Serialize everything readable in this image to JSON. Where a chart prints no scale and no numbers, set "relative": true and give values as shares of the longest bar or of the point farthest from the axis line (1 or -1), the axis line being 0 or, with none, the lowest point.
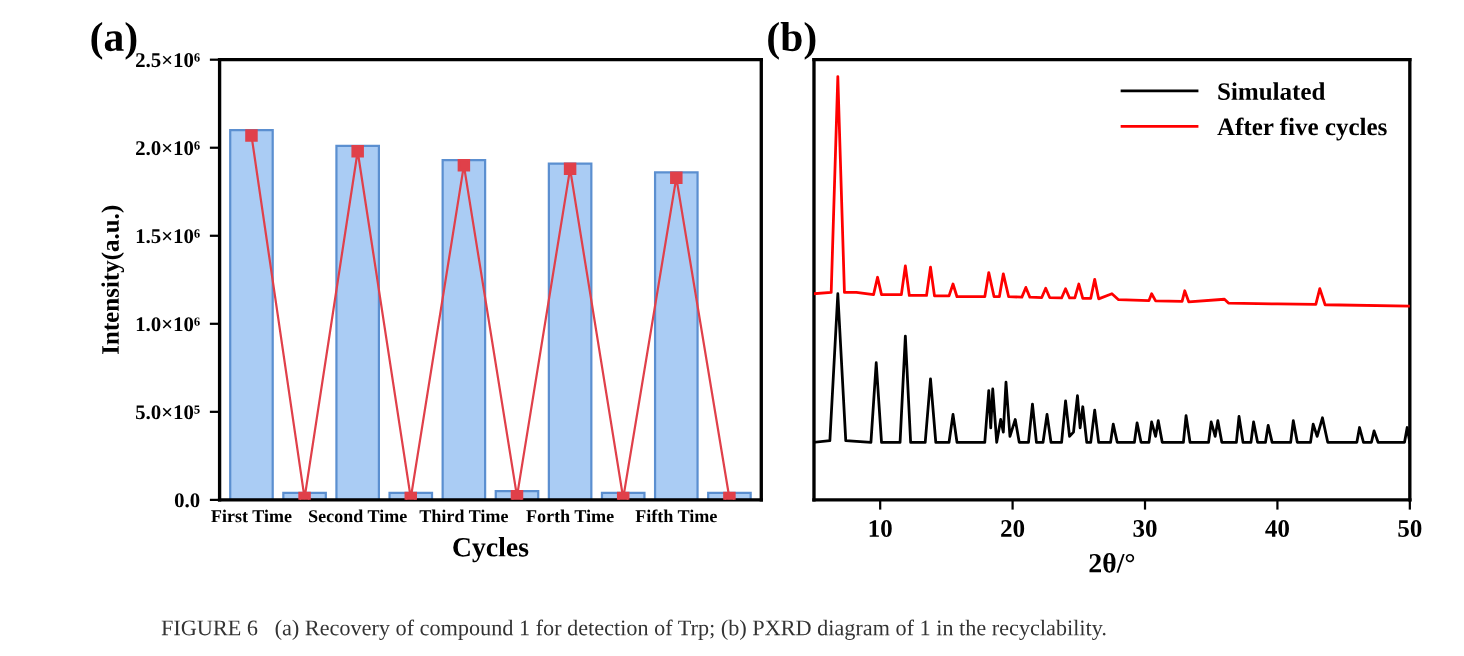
{
  "chart_data": [
    {
      "type": "bar",
      "title": "(a)",
      "xlabel": "Cycles",
      "ylabel": "Intensity(a.u.)",
      "categories": [
        "First Time",
        null,
        "Second Time",
        null,
        "Third Time",
        null,
        "Forth Time",
        null,
        "Fifth Time",
        null
      ],
      "series": [
        {
          "type": "bar",
          "color": "#aaccf4",
          "values": [
            2100000,
            40000,
            2010000,
            40000,
            1930000,
            50000,
            1910000,
            40000,
            1860000,
            40000
          ]
        },
        {
          "type": "line",
          "color": "#e0404a",
          "marker": "square",
          "values": [
            2070000,
            10000,
            1980000,
            10000,
            1900000,
            20000,
            1880000,
            10000,
            1830000,
            10000
          ]
        }
      ],
      "ylim": [
        0,
        2500000
      ],
      "yticks": [
        {
          "value": 0,
          "label": "0.0"
        },
        {
          "value": 500000,
          "label": "5.0×10⁵"
        },
        {
          "value": 1000000,
          "label": "1.0×10⁶"
        },
        {
          "value": 1500000,
          "label": "1.5×10⁶"
        },
        {
          "value": 2000000,
          "label": "2.0×10⁶"
        },
        {
          "value": 2500000,
          "label": "2.5×10⁶"
        }
      ],
      "annotations": [
        "FIGURE 6   (a) Recovery of compound 1 for detection of Trp; (b) PXRD diagram of 1 in the recyclability."
      ]
    },
    {
      "type": "line",
      "title": "(b)",
      "xlabel": "2θ/°",
      "relative": true,
      "xlim": [
        5,
        50
      ],
      "xticks": [
        10,
        20,
        30,
        40,
        50
      ],
      "tick_labels": "x",
      "legend": "top right",
      "series": [
        {
          "name": "Simulated",
          "color": "#000000",
          "x": [
            5,
            6.2,
            6.8,
            7.4,
            9.3,
            9.7,
            10.1,
            11.5,
            11.9,
            12.3,
            13.4,
            13.8,
            14.2,
            15.2,
            15.5,
            15.8,
            17.9,
            18.2,
            18.35,
            18.5,
            18.8,
            19.1,
            19.3,
            19.5,
            19.8,
            20.2,
            20.5,
            21.2,
            21.5,
            21.8,
            22.3,
            22.6,
            22.9,
            23.7,
            24.0,
            24.3,
            24.6,
            24.9,
            25.1,
            25.3,
            25.6,
            25.9,
            26.2,
            26.5,
            27.4,
            27.6,
            27.9,
            29.2,
            29.4,
            29.7,
            30.3,
            30.5,
            30.8,
            31.0,
            31.3,
            32.9,
            33.1,
            33.4,
            34.8,
            35.0,
            35.3,
            35.5,
            35.8,
            36.9,
            37.1,
            37.4,
            38.0,
            38.2,
            38.5,
            39.1,
            39.3,
            39.6,
            41.0,
            41.2,
            41.5,
            42.5,
            42.7,
            43.0,
            43.4,
            43.8,
            46.0,
            46.2,
            46.5,
            47.1,
            47.3,
            47.6,
            49.6,
            49.8,
            50
          ],
          "values": [
            0.136,
            0.14,
            0.487,
            0.14,
            0.136,
            0.324,
            0.136,
            0.136,
            0.387,
            0.136,
            0.136,
            0.286,
            0.136,
            0.136,
            0.202,
            0.136,
            0.136,
            0.258,
            0.17,
            0.262,
            0.136,
            0.19,
            0.16,
            0.278,
            0.15,
            0.19,
            0.136,
            0.136,
            0.226,
            0.136,
            0.136,
            0.202,
            0.136,
            0.136,
            0.234,
            0.15,
            0.16,
            0.246,
            0.17,
            0.22,
            0.136,
            0.136,
            0.212,
            0.136,
            0.136,
            0.179,
            0.136,
            0.136,
            0.182,
            0.136,
            0.136,
            0.184,
            0.15,
            0.187,
            0.136,
            0.136,
            0.199,
            0.136,
            0.136,
            0.184,
            0.15,
            0.187,
            0.136,
            0.136,
            0.197,
            0.136,
            0.136,
            0.184,
            0.136,
            0.136,
            0.176,
            0.136,
            0.136,
            0.187,
            0.136,
            0.136,
            0.179,
            0.15,
            0.194,
            0.136,
            0.136,
            0.171,
            0.136,
            0.136,
            0.163,
            0.136,
            0.136,
            0.171,
            0.136
          ]
        },
        {
          "name": "After five cycles",
          "color": "#ff0000",
          "x": [
            5,
            6.3,
            6.8,
            7.3,
            8.2,
            9.5,
            9.8,
            10.1,
            11.6,
            11.9,
            12.2,
            13.5,
            13.8,
            14.1,
            15.2,
            15.5,
            15.8,
            17.9,
            18.2,
            18.6,
            19.0,
            19.3,
            19.7,
            20.7,
            21.0,
            21.3,
            22.2,
            22.5,
            22.8,
            23.7,
            24.0,
            24.3,
            24.7,
            25.0,
            25.3,
            25.9,
            26.2,
            26.5,
            27.5,
            28,
            30.3,
            30.5,
            30.8,
            32.8,
            33.0,
            33.3,
            36.0,
            36.3,
            40,
            42.9,
            43.2,
            43.6,
            50
          ],
          "values": [
            0.487,
            0.49,
            1.0,
            0.49,
            0.49,
            0.485,
            0.526,
            0.485,
            0.485,
            0.553,
            0.483,
            0.483,
            0.55,
            0.482,
            0.482,
            0.51,
            0.48,
            0.48,
            0.537,
            0.48,
            0.48,
            0.534,
            0.48,
            0.479,
            0.502,
            0.479,
            0.478,
            0.5,
            0.478,
            0.477,
            0.499,
            0.477,
            0.477,
            0.51,
            0.476,
            0.476,
            0.521,
            0.475,
            0.487,
            0.473,
            0.471,
            0.487,
            0.47,
            0.469,
            0.494,
            0.468,
            0.474,
            0.465,
            0.463,
            0.462,
            0.499,
            0.461,
            0.458
          ]
        }
      ]
    }
  ]
}
